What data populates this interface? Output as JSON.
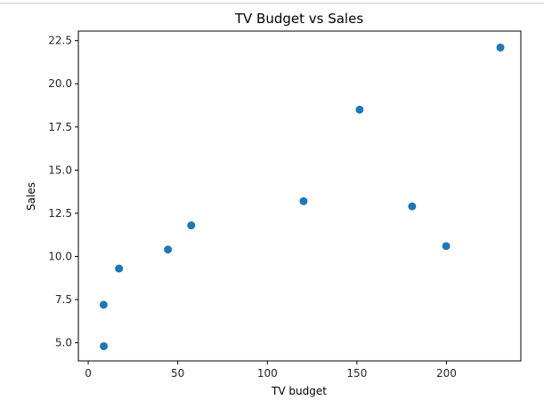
{
  "chart_data": {
    "type": "scatter",
    "title": "TV Budget vs Sales",
    "xlabel": "TV budget",
    "ylabel": "Sales",
    "xlim": [
      -5.5,
      241.5
    ],
    "ylim": [
      3.95,
      23.05
    ],
    "xticks": [
      0,
      50,
      100,
      150,
      200
    ],
    "yticks": [
      5.0,
      7.5,
      10.0,
      12.5,
      15.0,
      17.5,
      20.0,
      22.5
    ],
    "xtick_labels": [
      "0",
      "50",
      "100",
      "150",
      "200"
    ],
    "ytick_labels": [
      "5.0",
      "7.5",
      "10.0",
      "12.5",
      "15.0",
      "17.5",
      "20.0",
      "22.5"
    ],
    "grid": false,
    "color": "#1f77b4",
    "series": [
      {
        "x": [
          8.7,
          8.6,
          17.2,
          44.5,
          57.5,
          120.2,
          151.5,
          180.8,
          199.8,
          230.1
        ],
        "y": [
          4.8,
          7.2,
          9.3,
          10.4,
          11.8,
          13.2,
          18.5,
          12.9,
          10.6,
          22.1
        ]
      }
    ]
  }
}
